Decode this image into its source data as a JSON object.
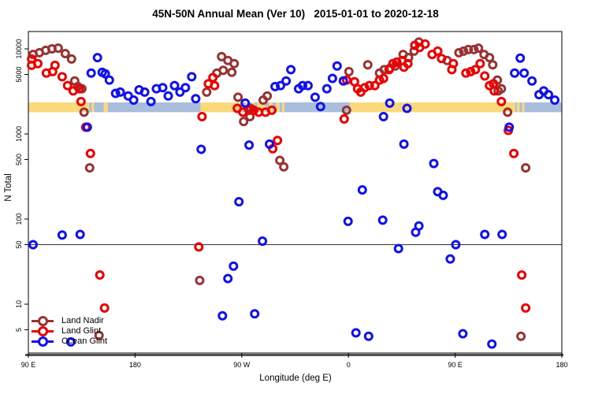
{
  "title": "45N-50N Annual Mean (Ver 10)   2015-01-01 to 2020-12-18",
  "chart_data": {
    "type": "scatter",
    "title": "45N-50N Annual Mean (Ver 10)   2015-01-01 to 2020-12-18",
    "xlabel": "Longitude (deg E)",
    "ylabel": "N Total",
    "x_axis": {
      "note": "axis starts at 90E and wraps eastward for 450 degrees",
      "range_deg": [
        0,
        450
      ],
      "ticks_deg": [
        0,
        90,
        180,
        270,
        360,
        450
      ],
      "tick_labels": [
        "90 E",
        "180",
        "90 W",
        "0",
        "90 E",
        "180"
      ]
    },
    "y_axis": {
      "scale": "log",
      "range": [
        2.7,
        16000
      ],
      "ticks": [
        10000,
        5000,
        1000,
        500,
        100,
        50,
        10,
        5
      ],
      "tick_labels": [
        "10000",
        "5000",
        "1000",
        "500",
        "100",
        "50",
        "10",
        "5"
      ]
    },
    "reference_line": {
      "value": 50,
      "color": "#333333"
    },
    "surface_band": {
      "value_top": 2350,
      "value_bottom": 1800,
      "land_color": "#FAD87C",
      "ocean_color": "#A8BEDC",
      "segments": [
        {
          "surface": "land",
          "from": 0,
          "to": 51.3
        },
        {
          "surface": "ocean",
          "from": 51.3,
          "to": 145.3
        },
        {
          "surface": "land",
          "from": 53.3,
          "to": 55.5
        },
        {
          "surface": "land",
          "from": 63.5,
          "to": 67
        },
        {
          "surface": "land",
          "from": 145.3,
          "to": 200
        },
        {
          "surface": "ocean",
          "from": 181,
          "to": 183
        },
        {
          "surface": "ocean",
          "from": 186,
          "to": 188
        },
        {
          "surface": "ocean",
          "from": 191,
          "to": 193
        },
        {
          "surface": "ocean",
          "from": 200,
          "to": 271.3
        },
        {
          "surface": "land",
          "from": 203,
          "to": 206
        },
        {
          "surface": "land",
          "from": 209,
          "to": 212
        },
        {
          "surface": "land",
          "from": 214,
          "to": 216
        },
        {
          "surface": "land",
          "from": 271.3,
          "to": 410.7
        },
        {
          "surface": "ocean",
          "from": 410.7,
          "to": 450
        },
        {
          "surface": "land",
          "from": 412,
          "to": 414.5
        },
        {
          "surface": "land",
          "from": 416.5,
          "to": 418.5
        }
      ]
    },
    "legend_position": "bottom-left",
    "series": [
      {
        "name": "Land Nadir",
        "color": "#993333",
        "points": [
          [
            4,
            8600
          ],
          [
            9.3,
            9000
          ],
          [
            14.6,
            9600
          ],
          [
            19.9,
            10000
          ],
          [
            25.2,
            10200
          ],
          [
            31.1,
            8800
          ],
          [
            36.4,
            7600
          ],
          [
            39.1,
            4200
          ],
          [
            41.7,
            3600
          ],
          [
            45.1,
            3400
          ],
          [
            47,
            1800
          ],
          [
            51.7,
            400
          ],
          [
            150.4,
            3100
          ],
          [
            159,
            5200
          ],
          [
            163,
            8100
          ],
          [
            168.3,
            7300
          ],
          [
            173.6,
            6700
          ],
          [
            164.4,
            5600
          ],
          [
            171.6,
            5300
          ],
          [
            176.9,
            2700
          ],
          [
            201.5,
            2800
          ],
          [
            198.1,
            2500
          ],
          [
            187.5,
            2000
          ],
          [
            186.9,
            1600
          ],
          [
            181.6,
            1400
          ],
          [
            212.1,
            490
          ],
          [
            215.4,
            410
          ],
          [
            268.4,
            1900
          ],
          [
            270.4,
            5400
          ],
          [
            286.3,
            6500
          ],
          [
            296.2,
            5200
          ],
          [
            300.2,
            5700
          ],
          [
            304.8,
            5900
          ],
          [
            309.5,
            6300
          ],
          [
            316.1,
            8600
          ],
          [
            320.7,
            7900
          ],
          [
            325.4,
            9400
          ],
          [
            329.4,
            12000
          ],
          [
            353.2,
            7300
          ],
          [
            363.2,
            9000
          ],
          [
            367.1,
            9400
          ],
          [
            371.1,
            9800
          ],
          [
            375.8,
            9800
          ],
          [
            379.7,
            10200
          ],
          [
            384.4,
            8600
          ],
          [
            389,
            7900
          ],
          [
            391.7,
            6500
          ],
          [
            395.6,
            4300
          ],
          [
            399,
            3400
          ],
          [
            396.3,
            3200
          ],
          [
            404.3,
            1800
          ],
          [
            419.5,
            400
          ],
          [
            59.6,
            4.3
          ],
          [
            144.5,
            19
          ],
          [
            415.5,
            4.2
          ]
        ]
      },
      {
        "name": "Land Glint",
        "color": "#EE0000",
        "points": [
          [
            2.7,
            7600
          ],
          [
            2.7,
            6400
          ],
          [
            8,
            6700
          ],
          [
            15.2,
            5200
          ],
          [
            20.5,
            5400
          ],
          [
            22.5,
            6400
          ],
          [
            28.5,
            4700
          ],
          [
            33.1,
            3700
          ],
          [
            37.8,
            3200
          ],
          [
            43.1,
            3400
          ],
          [
            44.4,
            2400
          ],
          [
            48.4,
            1200
          ],
          [
            52.4,
            590
          ],
          [
            60.3,
            22
          ],
          [
            64.3,
            9
          ],
          [
            151.8,
            3900
          ],
          [
            155.7,
            4600
          ],
          [
            157.1,
            3700
          ],
          [
            146.5,
            1600
          ],
          [
            176.3,
            2000
          ],
          [
            180.9,
            1800
          ],
          [
            186.2,
            1900
          ],
          [
            190.2,
            1900
          ],
          [
            194.2,
            1800
          ],
          [
            200.1,
            1800
          ],
          [
            205.4,
            1900
          ],
          [
            210.1,
            840
          ],
          [
            206.1,
            670
          ],
          [
            143.8,
            47
          ],
          [
            266.4,
            1500
          ],
          [
            268.4,
            4300
          ],
          [
            275.1,
            4100
          ],
          [
            277.7,
            3400
          ],
          [
            280.4,
            3100
          ],
          [
            283.7,
            3500
          ],
          [
            287.6,
            3700
          ],
          [
            292.3,
            3700
          ],
          [
            296.2,
            4300
          ],
          [
            299.6,
            4500
          ],
          [
            304.2,
            5700
          ],
          [
            307.5,
            6700
          ],
          [
            310.8,
            7000
          ],
          [
            315.4,
            7300
          ],
          [
            320.1,
            6700
          ],
          [
            316.8,
            6100
          ],
          [
            326,
            11000
          ],
          [
            330,
            10400
          ],
          [
            334.7,
            11400
          ],
          [
            340.6,
            8600
          ],
          [
            345.3,
            9400
          ],
          [
            348.6,
            7700
          ],
          [
            358.5,
            6700
          ],
          [
            357.2,
            5700
          ],
          [
            369.1,
            5200
          ],
          [
            373.1,
            5400
          ],
          [
            377.1,
            5700
          ],
          [
            381.1,
            6700
          ],
          [
            385,
            4800
          ],
          [
            389,
            3700
          ],
          [
            392.3,
            3900
          ],
          [
            393,
            3200
          ],
          [
            399,
            2400
          ],
          [
            404.9,
            1100
          ],
          [
            409.5,
            590
          ],
          [
            416.2,
            22
          ],
          [
            419.5,
            9
          ]
        ]
      },
      {
        "name": "Ocean Glint",
        "color": "#1111EE",
        "points": [
          [
            58.3,
            7900
          ],
          [
            53,
            5200
          ],
          [
            62.3,
            5300
          ],
          [
            64.9,
            5100
          ],
          [
            68.3,
            4300
          ],
          [
            73.6,
            3000
          ],
          [
            49.7,
            1200
          ],
          [
            77.5,
            3100
          ],
          [
            84.2,
            2800
          ],
          [
            88.8,
            2500
          ],
          [
            93.4,
            3300
          ],
          [
            98.1,
            3100
          ],
          [
            103.4,
            2400
          ],
          [
            108,
            3400
          ],
          [
            113.3,
            3500
          ],
          [
            118,
            2800
          ],
          [
            123.3,
            3700
          ],
          [
            127.9,
            3100
          ],
          [
            132.5,
            3500
          ],
          [
            137.8,
            4700
          ],
          [
            141.2,
            2600
          ],
          [
            145.8,
            660
          ],
          [
            182.9,
            2300
          ],
          [
            208.1,
            3600
          ],
          [
            212.7,
            3700
          ],
          [
            217.4,
            4200
          ],
          [
            221.4,
            5700
          ],
          [
            228,
            3400
          ],
          [
            231.3,
            3700
          ],
          [
            186.2,
            740
          ],
          [
            203.4,
            760
          ],
          [
            235.9,
            3700
          ],
          [
            241.9,
            2700
          ],
          [
            246.5,
            2100
          ],
          [
            251.8,
            3400
          ],
          [
            256.5,
            4500
          ],
          [
            260.4,
            6300
          ],
          [
            265.7,
            4200
          ],
          [
            304.8,
            2300
          ],
          [
            299.6,
            1600
          ],
          [
            319.4,
            2000
          ],
          [
            316.8,
            760
          ],
          [
            342,
            450
          ],
          [
            414.9,
            7800
          ],
          [
            410.2,
            5200
          ],
          [
            418.2,
            5200
          ],
          [
            424.8,
            4200
          ],
          [
            430.8,
            2900
          ],
          [
            434.7,
            3200
          ],
          [
            438.7,
            2900
          ],
          [
            444,
            2500
          ],
          [
            405.6,
            1200
          ],
          [
            4,
            50
          ],
          [
            28.5,
            65
          ],
          [
            43.7,
            66
          ],
          [
            177.6,
            160
          ],
          [
            281.7,
            220
          ],
          [
            269.7,
            94
          ],
          [
            298.9,
            97
          ],
          [
            197.5,
            55
          ],
          [
            312.2,
            45
          ],
          [
            173,
            28
          ],
          [
            168.3,
            20
          ],
          [
            163.7,
            7.3
          ],
          [
            190.9,
            7.7
          ],
          [
            276.3,
            4.6
          ],
          [
            287,
            4.2
          ],
          [
            345.3,
            210
          ],
          [
            349.9,
            190
          ],
          [
            329.4,
            83
          ],
          [
            326.7,
            70
          ],
          [
            360.5,
            50
          ],
          [
            355.9,
            34
          ],
          [
            385,
            66
          ],
          [
            399.6,
            66
          ],
          [
            366.5,
            4.5
          ],
          [
            391,
            3.4
          ],
          [
            35.8,
            3.6
          ]
        ]
      }
    ]
  }
}
